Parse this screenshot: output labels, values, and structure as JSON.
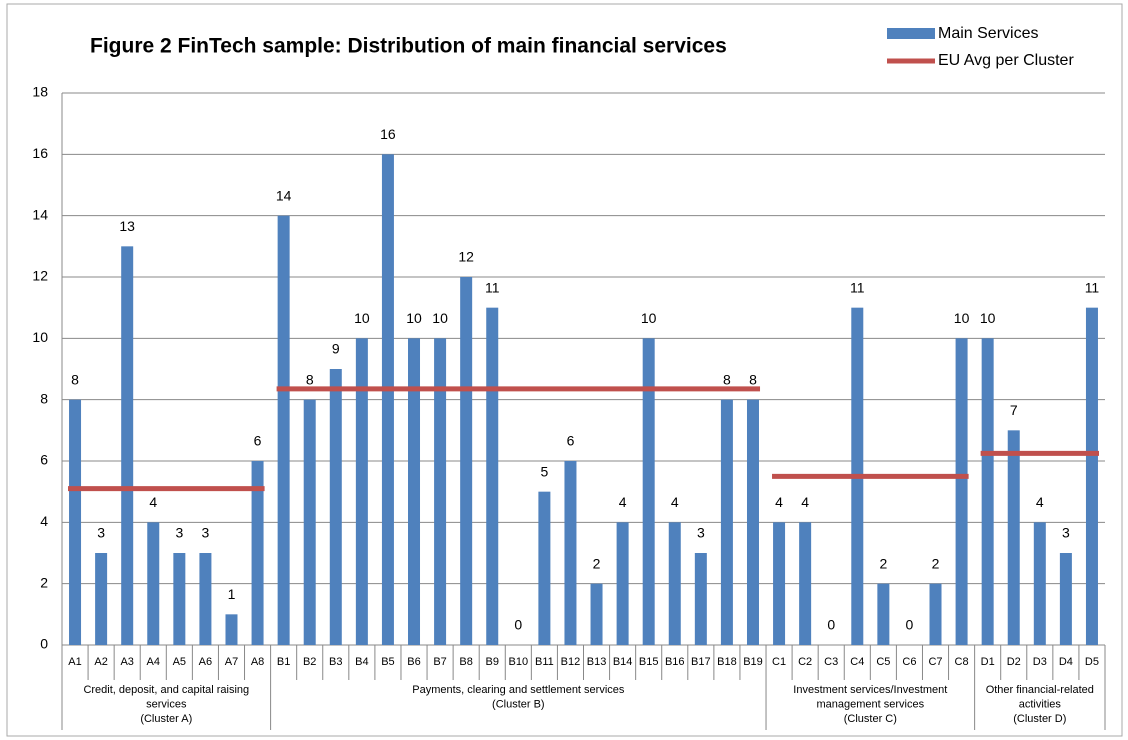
{
  "chart_data": {
    "type": "bar",
    "title": "Figure 2 FinTech sample: Distribution of main financial services",
    "legend": [
      {
        "name": "Main Services",
        "color": "#4f81bd"
      },
      {
        "name": "EU Avg per Cluster",
        "color": "#c0504d"
      }
    ],
    "ylim": [
      0,
      18
    ],
    "yticks": [
      0,
      2,
      4,
      6,
      8,
      10,
      12,
      14,
      16,
      18
    ],
    "grid": true,
    "groups": [
      {
        "label": [
          "Credit, deposit, and capital raising",
          "services",
          "(Cluster A)"
        ],
        "categories": [
          "A1",
          "A2",
          "A3",
          "A4",
          "A5",
          "A6",
          "A7",
          "A8"
        ],
        "values": [
          8,
          3,
          13,
          4,
          3,
          3,
          1,
          6
        ],
        "average": 5.1
      },
      {
        "label": [
          "Payments, clearing and settlement services",
          "(Cluster B)"
        ],
        "categories": [
          "B1",
          "B2",
          "B3",
          "B4",
          "B5",
          "B6",
          "B7",
          "B8",
          "B9",
          "B10",
          "B11",
          "B12",
          "B13",
          "B14",
          "B15",
          "B16",
          "B17",
          "B18",
          "B19"
        ],
        "values": [
          14,
          8,
          9,
          10,
          16,
          10,
          10,
          12,
          11,
          0,
          5,
          6,
          2,
          4,
          10,
          4,
          3,
          8,
          8
        ],
        "average": 8.35
      },
      {
        "label": [
          "Investment services/Investment",
          "management services",
          "(Cluster C)"
        ],
        "categories": [
          "C1",
          "C2",
          "C3",
          "C4",
          "C5",
          "C6",
          "C7",
          "C8"
        ],
        "values": [
          4,
          4,
          0,
          11,
          2,
          0,
          2,
          10
        ],
        "average": 5.5
      },
      {
        "label": [
          "Other financial-related",
          "activities",
          "(Cluster D)"
        ],
        "categories": [
          "D1",
          "D2",
          "D3",
          "D4",
          "D5"
        ],
        "values": [
          10,
          7,
          4,
          3,
          11
        ],
        "average": 6.25
      }
    ]
  }
}
